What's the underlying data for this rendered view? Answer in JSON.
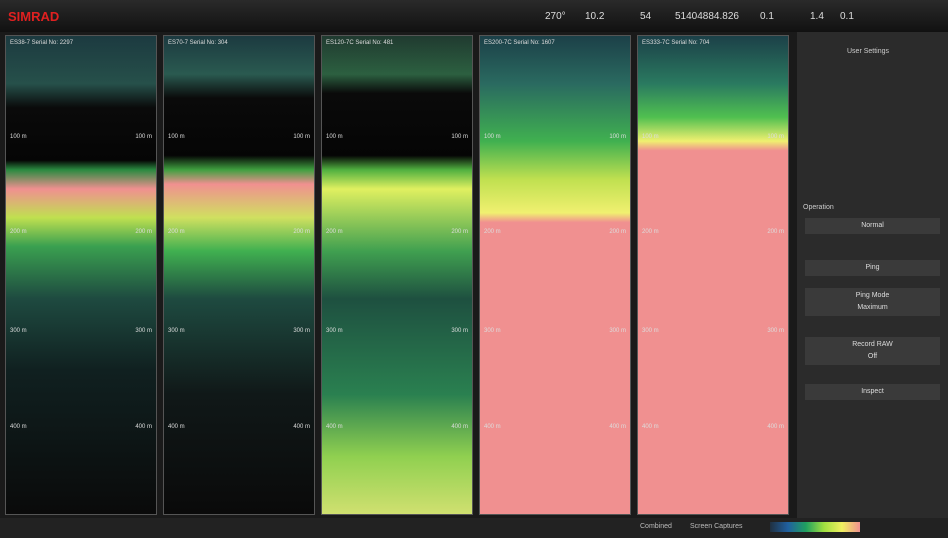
{
  "toolbar": {
    "logo": "SIMRAD",
    "readouts": [
      "270°",
      "10.2",
      "54",
      "51404884.826",
      "0.1",
      "1.4",
      "0.1"
    ]
  },
  "panels": [
    {
      "header": "ES38-7 Serial No: 2297",
      "depth_labels": [
        "100 m",
        "200 m",
        "300 m",
        "400 m"
      ]
    },
    {
      "header": "ES70-7 Serial No: 304",
      "depth_labels": [
        "100 m",
        "200 m",
        "300 m",
        "400 m"
      ]
    },
    {
      "header": "ES120-7C Serial No: 481",
      "depth_labels": [
        "100 m",
        "200 m",
        "300 m",
        "400 m"
      ]
    },
    {
      "header": "ES200-7C Serial No: 1607",
      "depth_labels": [
        "100 m",
        "200 m",
        "300 m",
        "400 m"
      ]
    },
    {
      "header": "ES333-7C Serial No: 704",
      "depth_labels": [
        "100 m",
        "200 m",
        "300 m",
        "400 m"
      ]
    }
  ],
  "sidebar": {
    "title": "User Settings",
    "section": "Operation",
    "buttons": [
      "Normal",
      "Ping",
      "Ping Mode",
      "Maximum",
      "Record RAW",
      "Off",
      "Inspect"
    ]
  },
  "statusbar": {
    "tabs": [
      "Combined",
      "Screen Captures"
    ]
  }
}
